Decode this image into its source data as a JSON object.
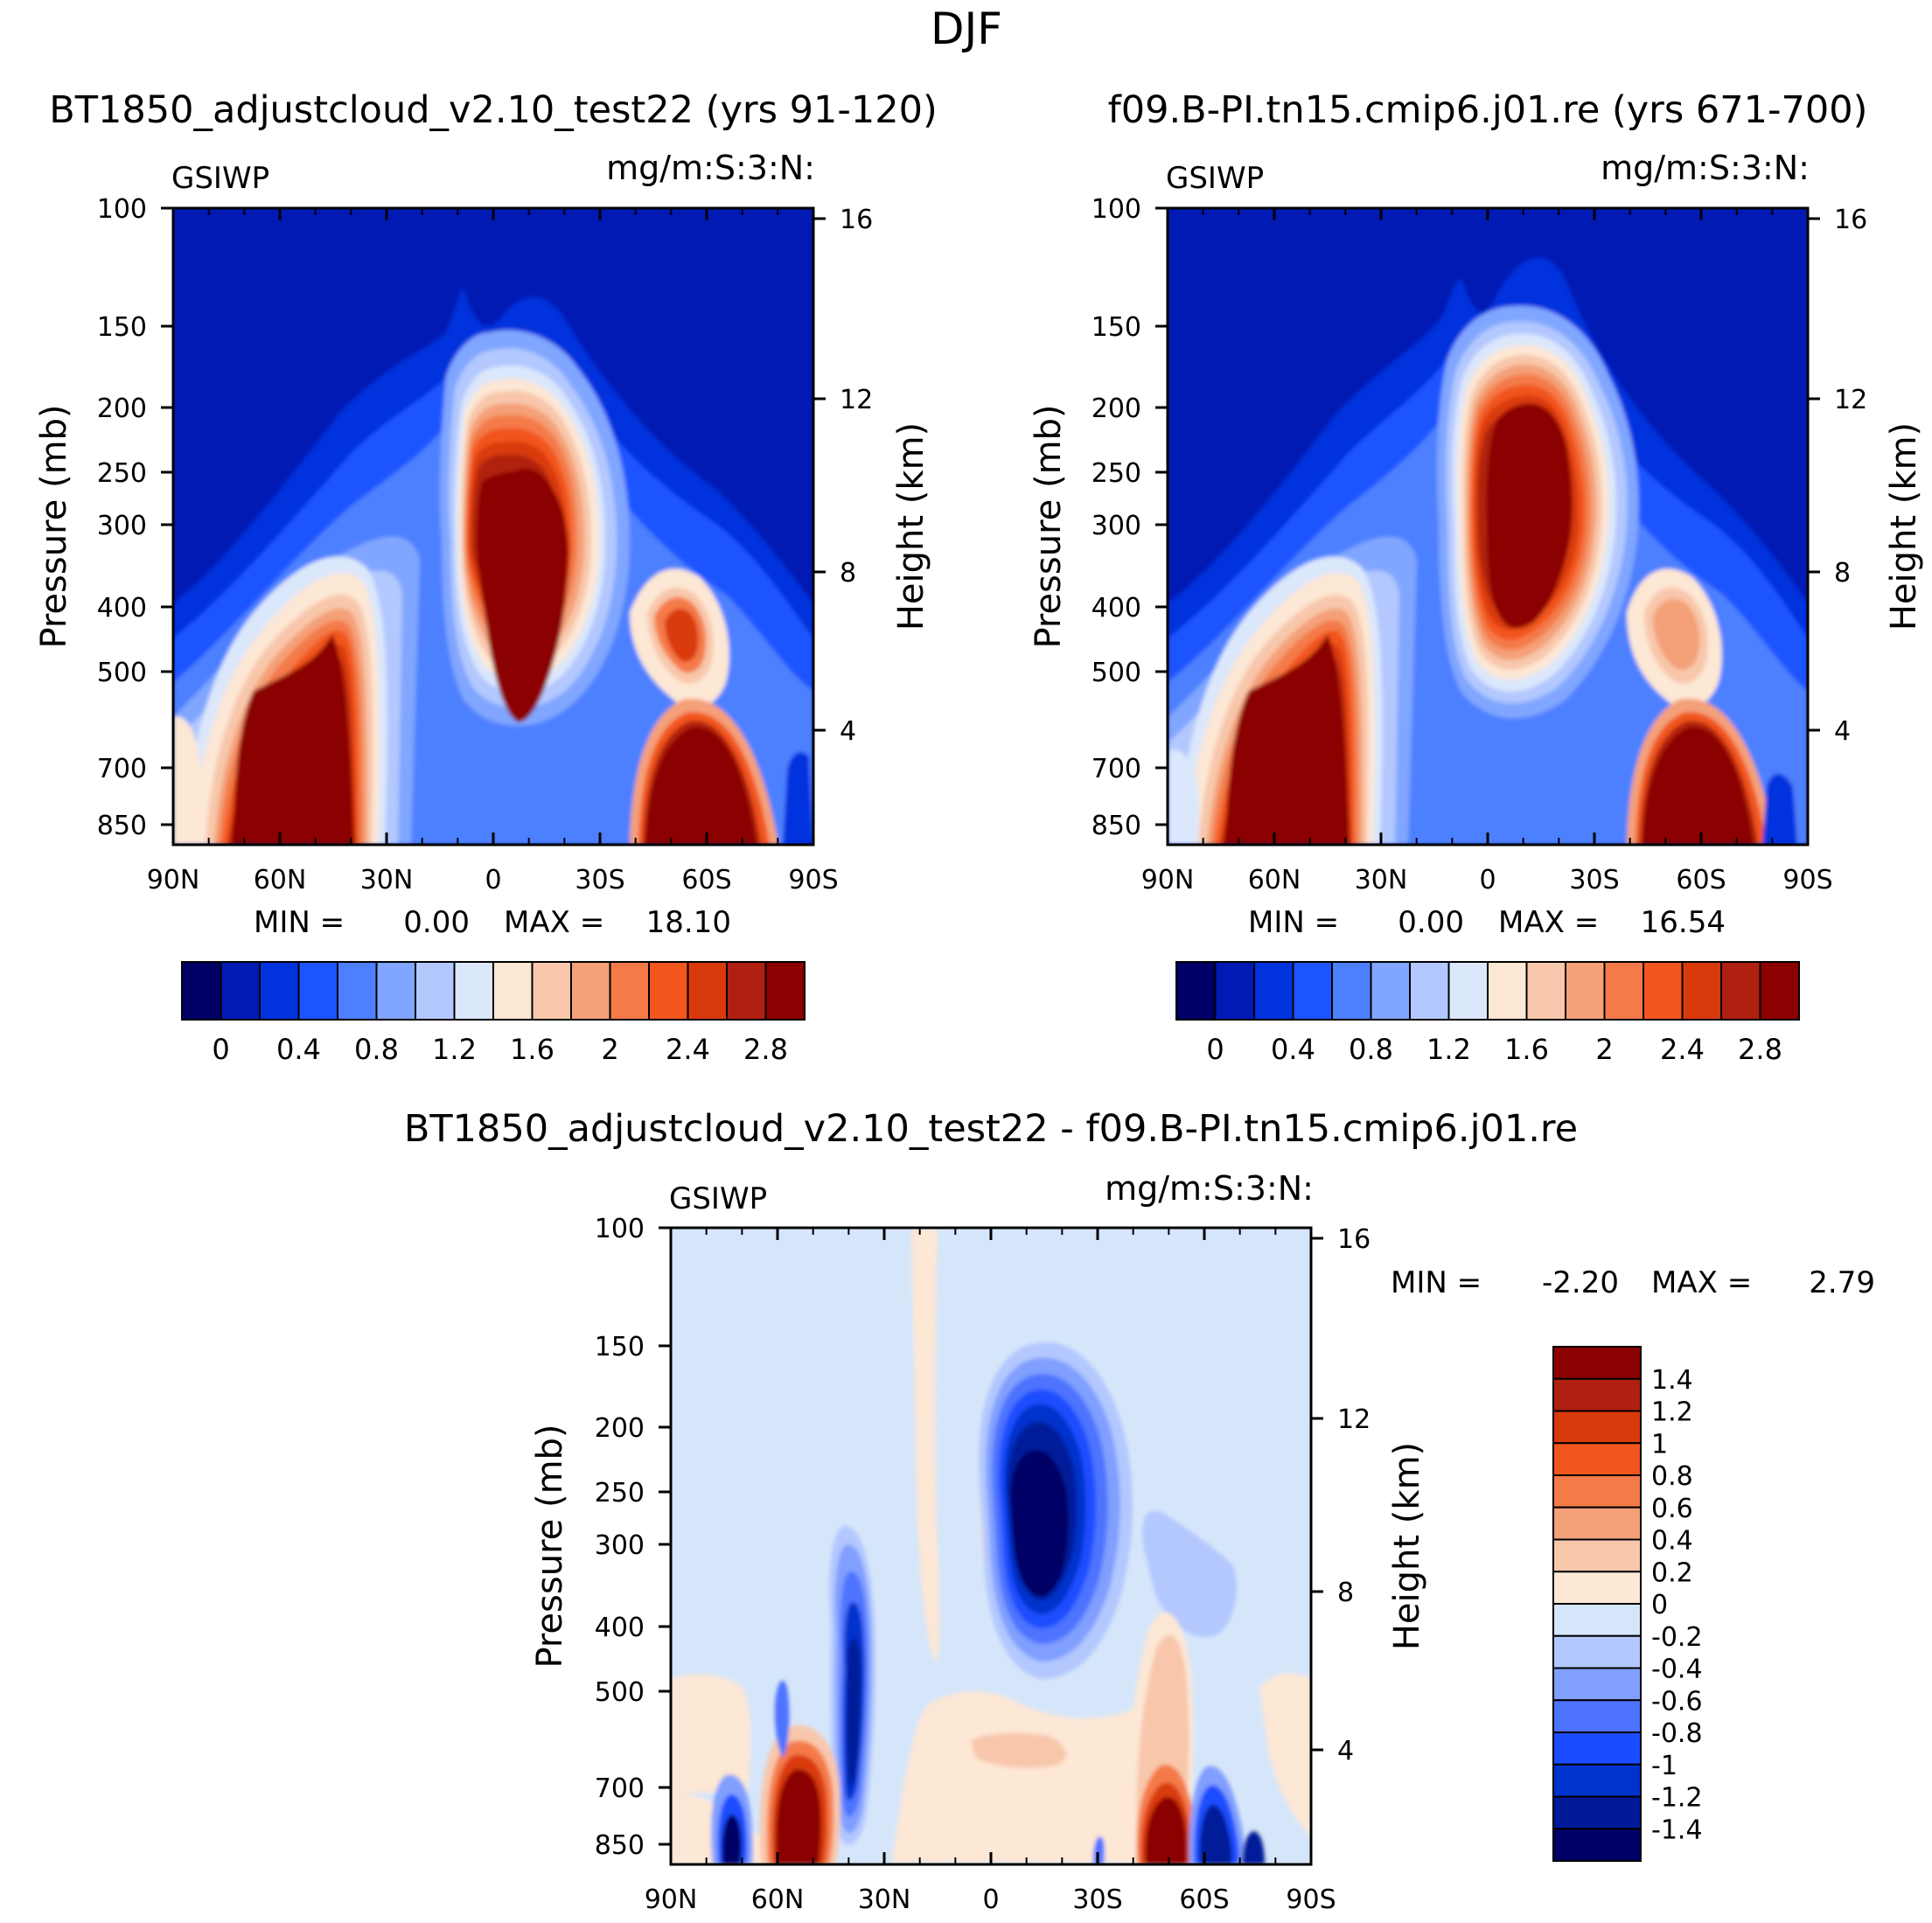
{
  "figure_title": "DJF",
  "palettes": {
    "field": [
      "#000066",
      "#001ab3",
      "#0033dd",
      "#1a55ff",
      "#4d80ff",
      "#80a6ff",
      "#b3c8ff",
      "#dbe7fb",
      "#fde7d5",
      "#f8c7ab",
      "#f4a078",
      "#f47a48",
      "#f2551e",
      "#d93a0c",
      "#b02010",
      "#8b0000"
    ],
    "diff": [
      "#000066",
      "#001a99",
      "#0033cc",
      "#1a4dff",
      "#4d73ff",
      "#809fff",
      "#b3c8ff",
      "#d6e6fa",
      "#fde7d5",
      "#f8c7ab",
      "#f4a078",
      "#f47a48",
      "#f2551e",
      "#d93a0c",
      "#b02010",
      "#8b0000"
    ]
  },
  "chart_data": [
    {
      "type": "heatmap",
      "panel": "top-left",
      "title": "BT1850_adjustcloud_v2.10_test22 (yrs 91-120)",
      "variable": "GSIWP",
      "units": "mg/m:S:3:N:",
      "xlabel": "",
      "ylabel": "Pressure (mb)",
      "ylabel_right": "Height (km)",
      "x_ticks": [
        "90N",
        "60N",
        "30N",
        "0",
        "30S",
        "60S",
        "90S"
      ],
      "y_ticks": [
        "100",
        "150",
        "200",
        "250",
        "300",
        "400",
        "500",
        "700",
        "850"
      ],
      "y_ticks_right": [
        "16",
        "12",
        "8",
        "4"
      ],
      "stats": {
        "min_label": "MIN =",
        "min": "0.00",
        "max_label": "MAX =",
        "max": "18.10"
      },
      "colorbar": {
        "orientation": "horizontal",
        "labels": [
          "0",
          "0.4",
          "0.8",
          "1.2",
          "1.6",
          "2",
          "2.4",
          "2.8"
        ]
      },
      "features": [
        {
          "name": "NH midlatitude low-level maximum",
          "lat": [
            -75,
            -35
          ],
          "pressure_mb": [
            350,
            900
          ],
          "value": ">2.8"
        },
        {
          "name": "Tropical upper maximum",
          "lat": [
            -10,
            20
          ],
          "pressure_mb": [
            200,
            620
          ],
          "value": ">2.8"
        },
        {
          "name": "SH midlatitude low-level maximum",
          "lat": [
            42,
            68
          ],
          "pressure_mb": [
            620,
            900
          ],
          "value": ">2.8"
        },
        {
          "name": "SH mid-level maximum",
          "lat": [
            50,
            62
          ],
          "pressure_mb": [
            380,
            520
          ],
          "value": "2.4"
        }
      ]
    },
    {
      "type": "heatmap",
      "panel": "top-right",
      "title": "f09.B-PI.tn15.cmip6.j01.re (yrs 671-700)",
      "variable": "GSIWP",
      "units": "mg/m:S:3:N:",
      "xlabel": "",
      "ylabel": "Pressure (mb)",
      "ylabel_right": "Height (km)",
      "x_ticks": [
        "90N",
        "60N",
        "30N",
        "0",
        "30S",
        "60S",
        "90S"
      ],
      "y_ticks": [
        "100",
        "150",
        "200",
        "250",
        "300",
        "400",
        "500",
        "700",
        "850"
      ],
      "y_ticks_right": [
        "16",
        "12",
        "8",
        "4"
      ],
      "stats": {
        "min_label": "MIN =",
        "min": "0.00",
        "max_label": "MAX =",
        "max": "16.54"
      },
      "colorbar": {
        "orientation": "horizontal",
        "labels": [
          "0",
          "0.4",
          "0.8",
          "1.2",
          "1.6",
          "2",
          "2.4",
          "2.8"
        ]
      },
      "features": [
        {
          "name": "NH midlatitude low-level maximum",
          "lat": [
            -75,
            -30
          ],
          "pressure_mb": [
            350,
            900
          ],
          "value": ">2.8"
        },
        {
          "name": "Tropical upper maximum",
          "lat": [
            -10,
            25
          ],
          "pressure_mb": [
            200,
            620
          ],
          "value": ">2.8"
        },
        {
          "name": "SH midlatitude low-level maximum",
          "lat": [
            45,
            72
          ],
          "pressure_mb": [
            620,
            900
          ],
          "value": ">2.8"
        },
        {
          "name": "SH mid-level maximum",
          "lat": [
            48,
            65
          ],
          "pressure_mb": [
            350,
            520
          ],
          "value": "2.0"
        }
      ]
    },
    {
      "type": "heatmap",
      "panel": "bottom",
      "title": "BT1850_adjustcloud_v2.10_test22 - f09.B-PI.tn15.cmip6.j01.re",
      "variable": "GSIWP",
      "units": "mg/m:S:3:N:",
      "xlabel": "",
      "ylabel": "Pressure (mb)",
      "ylabel_right": "Height (km)",
      "x_ticks": [
        "90N",
        "60N",
        "30N",
        "0",
        "30S",
        "60S",
        "90S"
      ],
      "y_ticks": [
        "100",
        "150",
        "200",
        "250",
        "300",
        "400",
        "500",
        "700",
        "850"
      ],
      "y_ticks_right": [
        "16",
        "12",
        "8",
        "4"
      ],
      "stats": {
        "min_label": "MIN =",
        "min": "-2.20",
        "max_label": "MAX =",
        "max": "2.79"
      },
      "colorbar": {
        "orientation": "vertical",
        "labels": [
          "1.4",
          "1.2",
          "1",
          "0.8",
          "0.6",
          "0.4",
          "0.2",
          "0",
          "-0.2",
          "-0.4",
          "-0.6",
          "-0.8",
          "-1",
          "-1.2",
          "-1.4"
        ]
      },
      "features": [
        {
          "name": "Tropical upper negative anomaly",
          "lat": [
            0,
            20
          ],
          "pressure_mb": [
            150,
            550
          ],
          "value": "<-1.4"
        },
        {
          "name": "NH 30N negative anomaly",
          "lat": [
            -42,
            -28
          ],
          "pressure_mb": [
            280,
            900
          ],
          "value": "-1.2"
        },
        {
          "name": "NH 45N positive anomaly",
          "lat": [
            -60,
            -40
          ],
          "pressure_mb": [
            600,
            900
          ],
          "value": ">1.4"
        },
        {
          "name": "SH 45S positive anomaly",
          "lat": [
            38,
            55
          ],
          "pressure_mb": [
            600,
            900
          ],
          "value": ">1.4"
        },
        {
          "name": "SH 60S negative anomaly",
          "lat": [
            55,
            68
          ],
          "pressure_mb": [
            700,
            900
          ],
          "value": "-1.4"
        }
      ]
    }
  ]
}
